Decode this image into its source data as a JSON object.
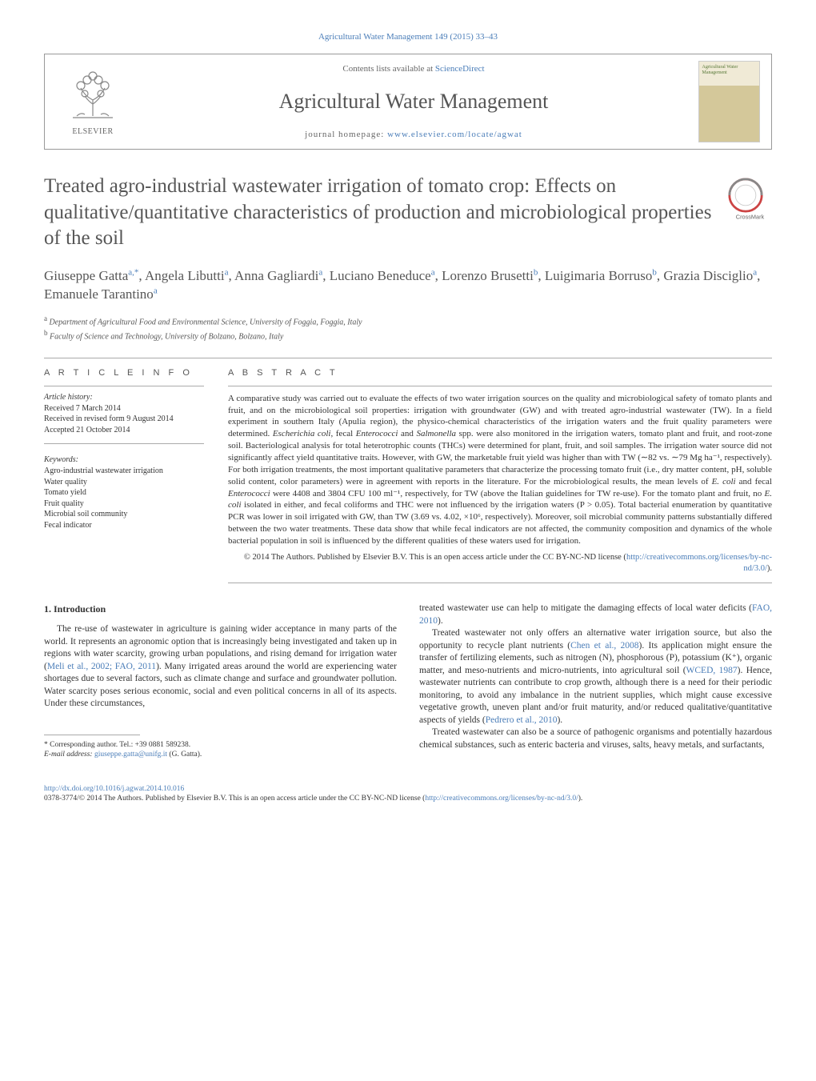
{
  "top_citation": "Agricultural Water Management 149 (2015) 33–43",
  "header": {
    "contents_prefix": "Contents lists available at ",
    "contents_link": "ScienceDirect",
    "journal_name": "Agricultural Water Management",
    "homepage_prefix": "journal homepage: ",
    "homepage_link": "www.elsevier.com/locate/agwat",
    "elsevier_label": "ELSEVIER",
    "cover_title": "Agricultural Water Management"
  },
  "article": {
    "title": "Treated agro-industrial wastewater irrigation of tomato crop: Effects on qualitative/quantitative characteristics of production and microbiological properties of the soil",
    "authors_html": "Giuseppe Gatta<sup>a,*</sup>, Angela Libutti<sup>a</sup>, Anna Gagliardi<sup>a</sup>, Luciano Beneduce<sup>a</sup>, Lorenzo Brusetti<sup>b</sup>, Luigimaria Borruso<sup>b</sup>, Grazia Disciglio<sup>a</sup>, Emanuele Tarantino<sup>a</sup>",
    "affiliations": [
      {
        "marker": "a",
        "text": "Department of Agricultural Food and Environmental Science, University of Foggia, Foggia, Italy"
      },
      {
        "marker": "b",
        "text": "Faculty of Science and Technology, University of Bolzano, Bolzano, Italy"
      }
    ]
  },
  "info": {
    "heading": "A R T I C L E   I N F O",
    "history_label": "Article history:",
    "history": [
      "Received 7 March 2014",
      "Received in revised form 9 August 2014",
      "Accepted 21 October 2014"
    ],
    "keywords_label": "Keywords:",
    "keywords": [
      "Agro-industrial wastewater irrigation",
      "Water quality",
      "Tomato yield",
      "Fruit quality",
      "Microbial soil community",
      "Fecal indicator"
    ]
  },
  "abstract": {
    "heading": "A B S T R A C T",
    "text": "A comparative study was carried out to evaluate the effects of two water irrigation sources on the quality and microbiological safety of tomato plants and fruit, and on the microbiological soil properties: irrigation with groundwater (GW) and with treated agro-industrial wastewater (TW). In a field experiment in southern Italy (Apulia region), the physico-chemical characteristics of the irrigation waters and the fruit quality parameters were determined. Escherichia coli, fecal Enterococci and Salmonella spp. were also monitored in the irrigation waters, tomato plant and fruit, and root-zone soil. Bacteriological analysis for total heterotrophic counts (THCs) were determined for plant, fruit, and soil samples. The irrigation water source did not significantly affect yield quantitative traits. However, with GW, the marketable fruit yield was higher than with TW (∼82 vs. ∼79 Mg ha⁻¹, respectively). For both irrigation treatments, the most important qualitative parameters that characterize the processing tomato fruit (i.e., dry matter content, pH, soluble solid content, color parameters) were in agreement with reports in the literature. For the microbiological results, the mean levels of E. coli and fecal Enterococci were 4408 and 3804 CFU 100 ml⁻¹, respectively, for TW (above the Italian guidelines for TW re-use). For the tomato plant and fruit, no E. coli isolated in either, and fecal coliforms and THC were not influenced by the irrigation waters (P > 0.05). Total bacterial enumeration by quantitative PCR was lower in soil irrigated with GW, than TW (3.69 vs. 4.02, ×10⁶, respectively). Moreover, soil microbial community patterns substantially differed between the two water treatments. These data show that while fecal indicators are not affected, the community composition and dynamics of the whole bacterial population in soil is influenced by the different qualities of these waters used for irrigation.",
    "copyright": "© 2014 The Authors. Published by Elsevier B.V. This is an open access article under the CC BY-NC-ND license (",
    "copyright_link": "http://creativecommons.org/licenses/by-nc-nd/3.0/",
    "copyright_close": ")."
  },
  "body": {
    "section_heading": "1.  Introduction",
    "col1_p1_a": "The re-use of wastewater in agriculture is gaining wider acceptance in many parts of the world. It represents an agronomic option that is increasingly being investigated and taken up in regions with water scarcity, growing urban populations, and rising demand for irrigation water (",
    "col1_p1_ref1": "Meli et al., 2002; FAO, 2011",
    "col1_p1_b": "). Many irrigated areas around the world are experiencing water shortages due to several factors, such as climate change and surface and groundwater pollution. Water scarcity poses serious economic, social and even political concerns in all of its aspects. Under these circumstances,",
    "col2_p1_a": "treated wastewater use can help to mitigate the damaging effects of local water deficits (",
    "col2_p1_ref1": "FAO, 2010",
    "col2_p1_b": ").",
    "col2_p2_a": "Treated wastewater not only offers an alternative water irrigation source, but also the opportunity to recycle plant nutrients (",
    "col2_p2_ref1": "Chen et al., 2008",
    "col2_p2_b": "). Its application might ensure the transfer of fertilizing elements, such as nitrogen (N), phosphorous (P), potassium (K⁺), organic matter, and meso-nutrients and micro-nutrients, into agricultural soil (",
    "col2_p2_ref2": "WCED, 1987",
    "col2_p2_c": "). Hence, wastewater nutrients can contribute to crop growth, although there is a need for their periodic monitoring, to avoid any imbalance in the nutrient supplies, which might cause excessive vegetative growth, uneven plant and/or fruit maturity, and/or reduced qualitative/quantitative aspects of yields (",
    "col2_p2_ref3": "Pedrero et al., 2010",
    "col2_p2_d": ").",
    "col2_p3": "Treated wastewater can also be a source of pathogenic organisms and potentially hazardous chemical substances, such as enteric bacteria and viruses, salts, heavy metals, and surfactants,"
  },
  "footnote": {
    "corresponding": "* Corresponding author. Tel.: +39 0881 589238.",
    "email_label": "E-mail address: ",
    "email": "giuseppe.gatta@unifg.it",
    "email_suffix": " (G. Gatta)."
  },
  "footer": {
    "doi": "http://dx.doi.org/10.1016/j.agwat.2014.10.016",
    "license": "0378-3774/© 2014 The Authors. Published by Elsevier B.V. This is an open access article under the CC BY-NC-ND license (",
    "license_link": "http://creativecommons.org/licenses/by-nc-nd/3.0/",
    "license_close": ")."
  },
  "colors": {
    "link": "#4a7db8",
    "text": "#333333",
    "heading": "#565656",
    "rule": "#aaaaaa"
  }
}
